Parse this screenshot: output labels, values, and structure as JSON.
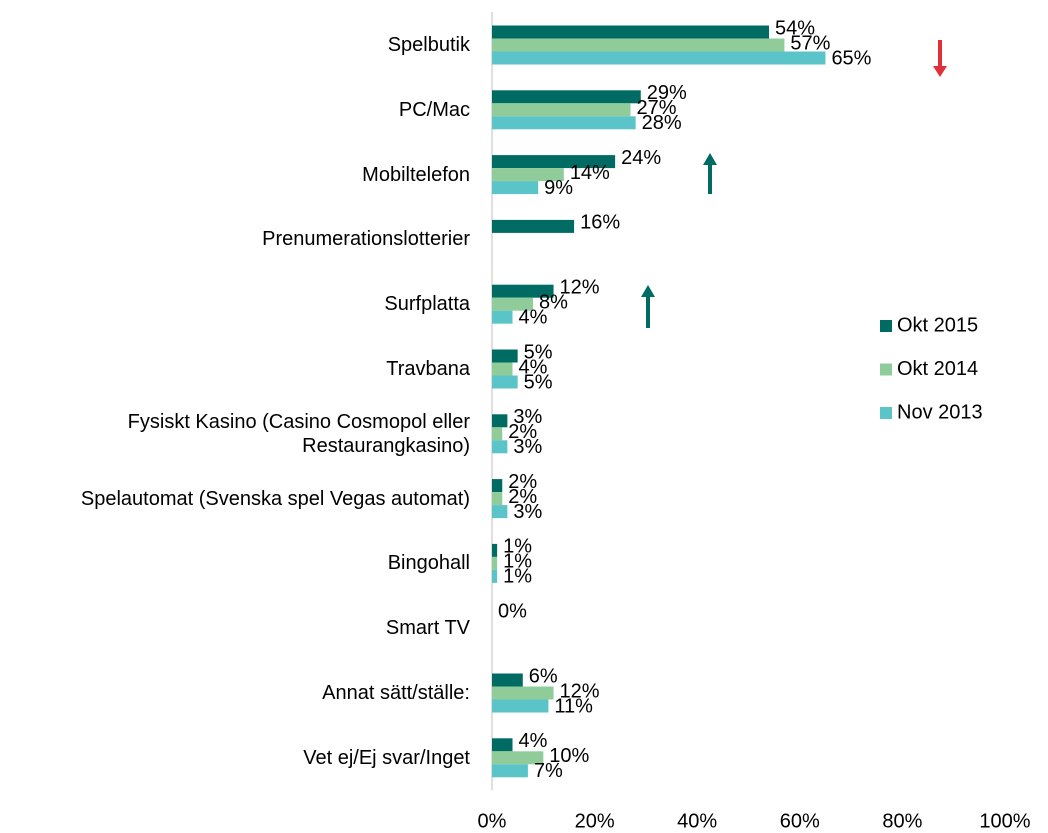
{
  "chart_data": {
    "type": "barh",
    "categories": [
      "Spelbutik",
      "PC/Mac",
      "Mobiltelefon",
      "Prenumerationslotterier",
      "Surfplatta",
      "Travbana",
      "Fysiskt Kasino (Casino Cosmopol eller Restaurangkasino)",
      "Spelautomat (Svenska spel Vegas automat)",
      "Bingohall",
      "Smart TV",
      "Annat sätt/ställe:",
      "Vet ej/Ej svar/Inget"
    ],
    "series": [
      {
        "name": "Okt 2015",
        "color": "#006b63",
        "values": [
          54,
          29,
          24,
          16,
          12,
          5,
          3,
          2,
          1,
          0,
          6,
          4
        ],
        "value_labels": [
          "54%",
          "29%",
          "24%",
          "16%",
          "12%",
          "5%",
          "3%",
          "2%",
          "1%",
          "0%",
          "6%",
          "4%"
        ]
      },
      {
        "name": "Okt 2014",
        "color": "#8fcc9a",
        "values": [
          57,
          27,
          14,
          null,
          8,
          4,
          2,
          2,
          1,
          null,
          12,
          10
        ],
        "value_labels": [
          "57%",
          "27%",
          "14%",
          null,
          "8%",
          "4%",
          "2%",
          "2%",
          "1%",
          null,
          "12%",
          "10%"
        ]
      },
      {
        "name": "Nov 2013",
        "color": "#5bc4c8",
        "values": [
          65,
          28,
          9,
          null,
          4,
          5,
          3,
          3,
          1,
          null,
          11,
          7
        ],
        "value_labels": [
          "65%",
          "28%",
          "9%",
          null,
          "4%",
          "5%",
          "3%",
          "3%",
          "1%",
          null,
          "11%",
          "7%"
        ]
      }
    ],
    "xlim": [
      0,
      100
    ],
    "xticks": [
      {
        "value": 0,
        "label": "0%"
      },
      {
        "value": 20,
        "label": "20%"
      },
      {
        "value": 40,
        "label": "40%"
      },
      {
        "value": 60,
        "label": "60%"
      },
      {
        "value": 80,
        "label": "80%"
      },
      {
        "value": 100,
        "label": "100%"
      }
    ],
    "legend": "right"
  }
}
